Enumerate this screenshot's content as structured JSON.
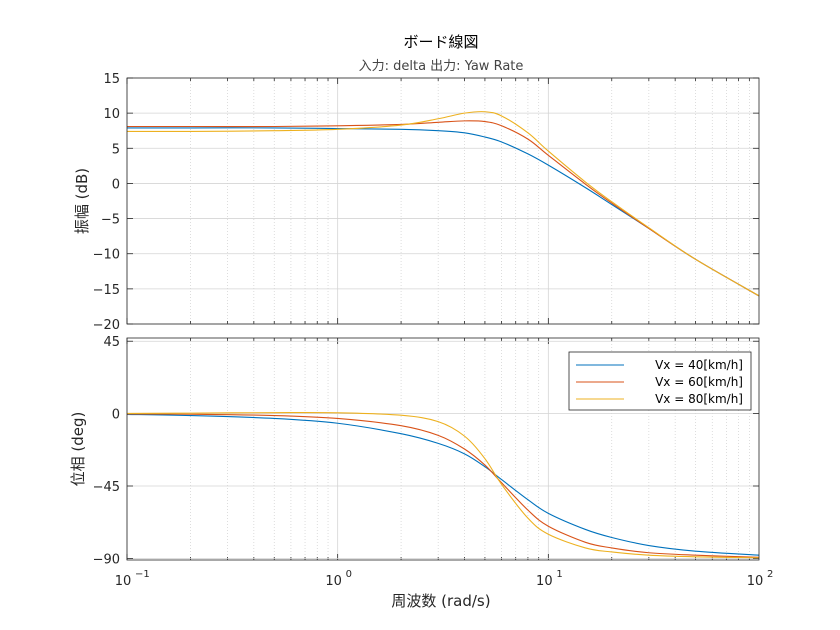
{
  "chart_data": [
    {
      "type": "line",
      "panel": "magnitude",
      "title": "ボード線図",
      "subtitle": "入力: delta  出力: Yaw Rate",
      "ylabel": "振幅 (dB)",
      "xscale": "log",
      "xlim": [
        0.1,
        100
      ],
      "ylim": [
        -20,
        15
      ],
      "yticks": [
        15,
        10,
        5,
        0,
        -5,
        -10,
        -15,
        -20
      ],
      "ytick_labels": [
        "15",
        "10",
        "5",
        "0",
        "−5",
        "−10",
        "−15",
        "−20"
      ],
      "grid": true,
      "x": [
        0.1,
        0.2,
        0.5,
        1,
        2,
        3,
        4,
        5,
        6,
        8,
        10,
        15,
        20,
        30,
        50,
        100
      ],
      "series": [
        {
          "name": "Vx = 40[km/h]",
          "color": "#0072BD",
          "values": [
            7.9,
            7.9,
            7.9,
            7.8,
            7.7,
            7.5,
            7.2,
            6.6,
            5.9,
            4.2,
            2.6,
            -0.6,
            -3.0,
            -6.4,
            -10.8,
            -16.0
          ]
        },
        {
          "name": "Vx = 60[km/h]",
          "color": "#D95319",
          "values": [
            8.1,
            8.1,
            8.1,
            8.2,
            8.4,
            8.7,
            8.9,
            8.8,
            8.2,
            6.3,
            4.0,
            -0.1,
            -2.8,
            -6.4,
            -10.8,
            -16.0
          ]
        },
        {
          "name": "Vx = 80[km/h]",
          "color": "#EDB120",
          "values": [
            7.4,
            7.4,
            7.5,
            7.7,
            8.3,
            9.2,
            10.0,
            10.2,
            9.6,
            7.2,
            4.6,
            0.2,
            -2.6,
            -6.3,
            -10.8,
            -16.0
          ]
        }
      ]
    },
    {
      "type": "line",
      "panel": "phase",
      "xlabel": "周波数  (rad/s)",
      "ylabel": "位相 (deg)",
      "xscale": "log",
      "xlim": [
        0.1,
        100
      ],
      "ylim": [
        -91,
        47
      ],
      "yticks": [
        45,
        0,
        -45,
        -90
      ],
      "ytick_labels": [
        "45",
        "0",
        "−45",
        "−90"
      ],
      "xticks": [
        {
          "base": "10",
          "exp": "−1"
        },
        {
          "base": "10",
          "exp": "0"
        },
        {
          "base": "10",
          "exp": "1"
        },
        {
          "base": "10",
          "exp": "2"
        }
      ],
      "grid": true,
      "legend_position": "top-right",
      "x": [
        0.1,
        0.2,
        0.5,
        1,
        2,
        3,
        4,
        5,
        6,
        8,
        10,
        15,
        20,
        30,
        50,
        100
      ],
      "series": [
        {
          "name": "Vx = 40[km/h]",
          "color": "#0072BD",
          "values": [
            -0.5,
            -1.2,
            -3.0,
            -6.0,
            -12.5,
            -18.5,
            -25.0,
            -33.0,
            -41.0,
            -53.5,
            -62.0,
            -72.0,
            -77.0,
            -82.0,
            -85.5,
            -88.0
          ]
        },
        {
          "name": "Vx = 60[km/h]",
          "color": "#D95319",
          "values": [
            -0.2,
            -0.4,
            -1.2,
            -3.0,
            -7.5,
            -13.5,
            -22.0,
            -32.0,
            -43.0,
            -60.0,
            -70.0,
            -80.0,
            -83.5,
            -86.5,
            -88.0,
            -89.3
          ]
        },
        {
          "name": "Vx = 80[km/h]",
          "color": "#EDB120",
          "values": [
            0.1,
            0.3,
            0.6,
            0.5,
            -1.0,
            -5.0,
            -14.0,
            -28.0,
            -44.0,
            -65.0,
            -75.0,
            -83.5,
            -86.0,
            -88.0,
            -89.0,
            -89.6
          ]
        }
      ]
    }
  ]
}
